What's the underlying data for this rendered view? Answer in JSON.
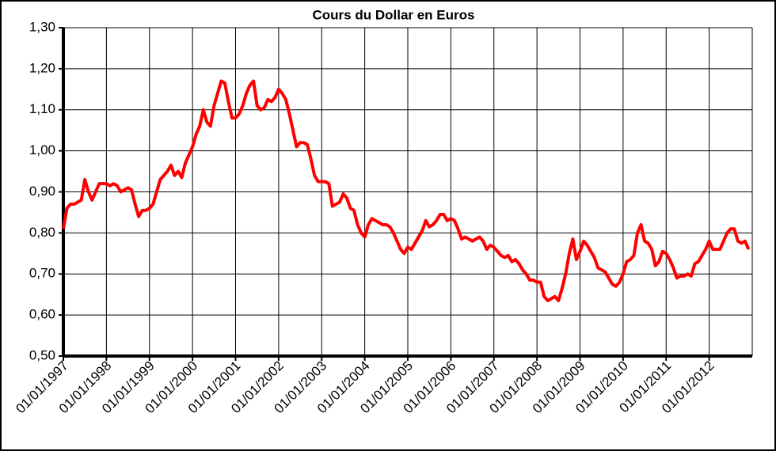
{
  "chart_data": {
    "type": "line",
    "title": "Cours du Dollar en Euros",
    "categories": [
      "01/01/1997",
      null,
      null,
      null,
      null,
      null,
      null,
      null,
      null,
      null,
      null,
      null,
      "01/01/1998",
      null,
      null,
      null,
      null,
      null,
      null,
      null,
      null,
      null,
      null,
      null,
      "01/01/1999",
      null,
      null,
      null,
      null,
      null,
      null,
      null,
      null,
      null,
      null,
      null,
      "01/01/2000",
      null,
      null,
      null,
      null,
      null,
      null,
      null,
      null,
      null,
      null,
      null,
      "01/01/2001",
      null,
      null,
      null,
      null,
      null,
      null,
      null,
      null,
      null,
      null,
      null,
      "01/01/2002",
      null,
      null,
      null,
      null,
      null,
      null,
      null,
      null,
      null,
      null,
      null,
      "01/01/2003",
      null,
      null,
      null,
      null,
      null,
      null,
      null,
      null,
      null,
      null,
      null,
      "01/01/2004",
      null,
      null,
      null,
      null,
      null,
      null,
      null,
      null,
      null,
      null,
      null,
      "01/01/2005",
      null,
      null,
      null,
      null,
      null,
      null,
      null,
      null,
      null,
      null,
      null,
      "01/01/2006",
      null,
      null,
      null,
      null,
      null,
      null,
      null,
      null,
      null,
      null,
      null,
      "01/01/2007",
      null,
      null,
      null,
      null,
      null,
      null,
      null,
      null,
      null,
      null,
      null,
      "01/01/2008",
      null,
      null,
      null,
      null,
      null,
      null,
      null,
      null,
      null,
      null,
      null,
      "01/01/2009",
      null,
      null,
      null,
      null,
      null,
      null,
      null,
      null,
      null,
      null,
      null,
      "01/01/2010",
      null,
      null,
      null,
      null,
      null,
      null,
      null,
      null,
      null,
      null,
      null,
      "01/01/2011",
      null,
      null,
      null,
      null,
      null,
      null,
      null,
      null,
      null,
      null,
      null,
      "01/01/2012",
      null,
      null,
      null,
      null,
      null,
      null,
      null,
      null,
      null,
      null,
      null
    ],
    "values": [
      0.81,
      0.86,
      0.87,
      0.87,
      0.875,
      0.88,
      0.93,
      0.9,
      0.88,
      0.9,
      0.92,
      0.92,
      0.92,
      0.915,
      0.92,
      0.915,
      0.9,
      0.905,
      0.91,
      0.905,
      0.87,
      0.84,
      0.855,
      0.855,
      0.86,
      0.87,
      0.9,
      0.93,
      0.94,
      0.95,
      0.965,
      0.94,
      0.95,
      0.935,
      0.97,
      0.99,
      1.01,
      1.04,
      1.06,
      1.1,
      1.07,
      1.06,
      1.11,
      1.14,
      1.17,
      1.165,
      1.12,
      1.08,
      1.08,
      1.09,
      1.11,
      1.14,
      1.16,
      1.17,
      1.11,
      1.1,
      1.105,
      1.125,
      1.12,
      1.13,
      1.15,
      1.14,
      1.125,
      1.09,
      1.05,
      1.01,
      1.02,
      1.02,
      1.015,
      0.98,
      0.94,
      0.925,
      0.925,
      0.925,
      0.92,
      0.865,
      0.87,
      0.875,
      0.895,
      0.885,
      0.86,
      0.855,
      0.82,
      0.8,
      0.79,
      0.82,
      0.835,
      0.83,
      0.825,
      0.82,
      0.82,
      0.815,
      0.8,
      0.78,
      0.76,
      0.75,
      0.765,
      0.76,
      0.775,
      0.79,
      0.805,
      0.83,
      0.815,
      0.82,
      0.83,
      0.845,
      0.845,
      0.83,
      0.835,
      0.83,
      0.81,
      0.785,
      0.79,
      0.785,
      0.78,
      0.785,
      0.79,
      0.78,
      0.76,
      0.77,
      0.765,
      0.755,
      0.745,
      0.74,
      0.745,
      0.73,
      0.735,
      0.725,
      0.71,
      0.7,
      0.685,
      0.685,
      0.68,
      0.68,
      0.645,
      0.635,
      0.64,
      0.645,
      0.635,
      0.665,
      0.7,
      0.75,
      0.785,
      0.735,
      0.755,
      0.78,
      0.77,
      0.755,
      0.74,
      0.715,
      0.71,
      0.705,
      0.69,
      0.675,
      0.67,
      0.68,
      0.7,
      0.73,
      0.735,
      0.745,
      0.8,
      0.82,
      0.78,
      0.775,
      0.76,
      0.72,
      0.73,
      0.755,
      0.75,
      0.735,
      0.715,
      0.69,
      0.695,
      0.695,
      0.7,
      0.695,
      0.725,
      0.73,
      0.745,
      0.76,
      0.78,
      0.76,
      0.76,
      0.76,
      0.78,
      0.8,
      0.81,
      0.81,
      0.78,
      0.775,
      0.78,
      0.76
    ],
    "color": "#ff0000",
    "ylim": [
      0.5,
      1.3
    ],
    "yticks": [
      {
        "value": 0.5,
        "label": "0,50"
      },
      {
        "value": 0.6,
        "label": "0,60"
      },
      {
        "value": 0.7,
        "label": "0,70"
      },
      {
        "value": 0.8,
        "label": "0,80"
      },
      {
        "value": 0.9,
        "label": "0,90"
      },
      {
        "value": 1.0,
        "label": "1,00"
      },
      {
        "value": 1.1,
        "label": "1,10"
      },
      {
        "value": 1.2,
        "label": "1,20"
      },
      {
        "value": 1.3,
        "label": "1,30"
      }
    ],
    "grid": true
  }
}
